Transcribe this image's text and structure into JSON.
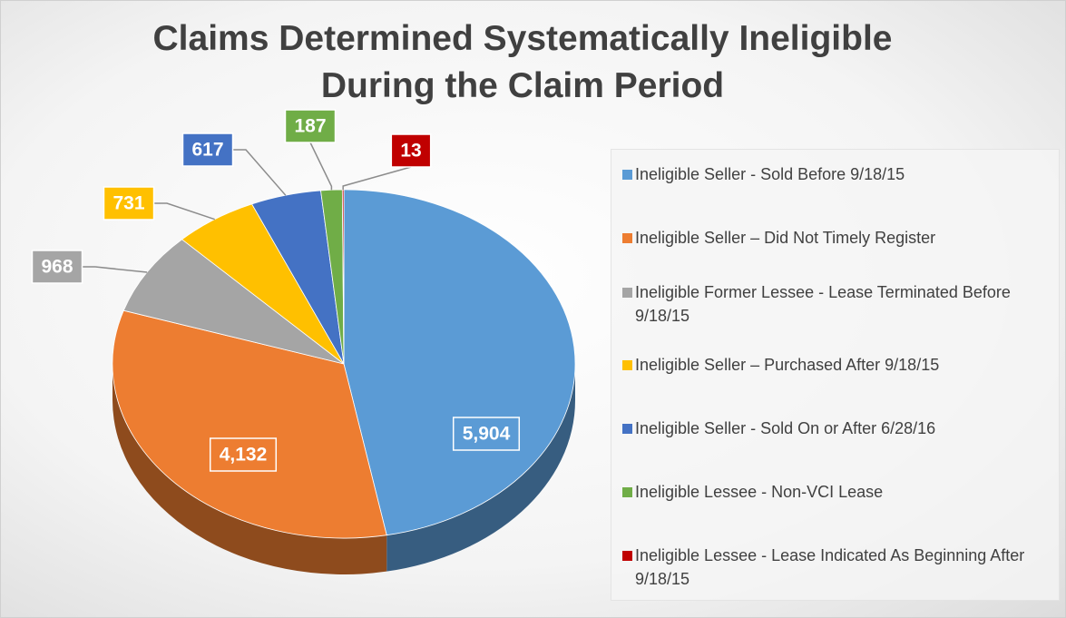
{
  "chart_data": {
    "type": "pie3d",
    "title": [
      "Claims Determined Systematically Ineligible",
      "During the Claim Period"
    ],
    "categories": [
      "Ineligible Seller - Sold Before 9/18/15",
      "Ineligible Seller – Did Not Timely Register",
      "Ineligible Former Lessee - Lease Terminated Before 9/18/15",
      "Ineligible Seller – Purchased After 9/18/15",
      "Ineligible Seller - Sold On or After 6/28/16",
      "Ineligible Lessee - Non-VCI Lease",
      "Ineligible Lessee - Lease Indicated As Beginning After 9/18/15"
    ],
    "values": [
      5904,
      4132,
      968,
      731,
      617,
      187,
      13
    ],
    "value_labels": [
      "5,904",
      "4,132",
      "968",
      "731",
      "617",
      "187",
      "13"
    ],
    "colors": [
      "#5b9bd5",
      "#ed7d31",
      "#a5a5a5",
      "#ffc000",
      "#4472c4",
      "#70ad47",
      "#c00000"
    ],
    "legend": "right"
  }
}
